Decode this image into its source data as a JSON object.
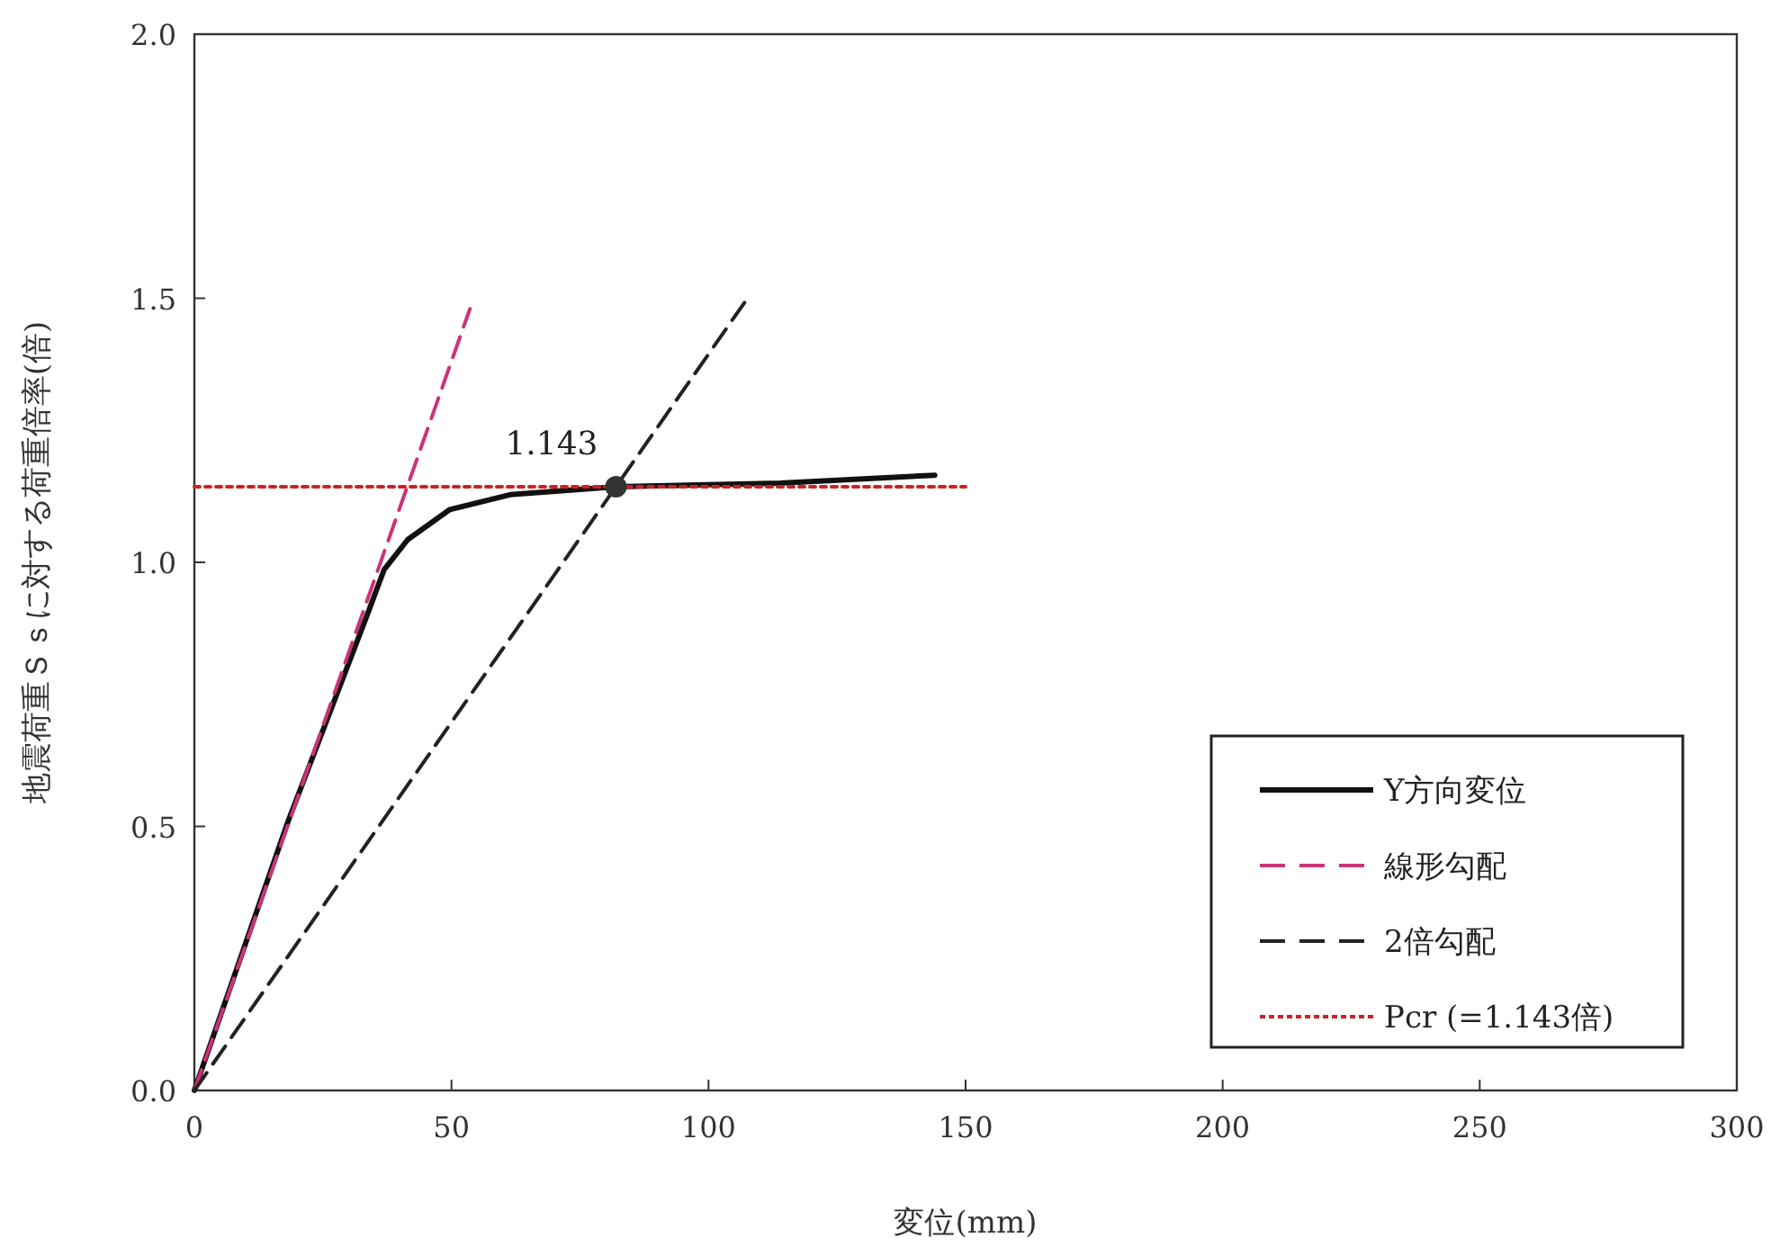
{
  "chart_data": {
    "type": "line",
    "xlabel": "変位(mm)",
    "ylabel": "地震荷重Ｓｓに対する荷重倍率(倍)",
    "xlim": [
      0,
      300
    ],
    "xticks": [
      0,
      50,
      100,
      150,
      200,
      250,
      300
    ],
    "ylim": [
      0,
      2
    ],
    "yticks": [
      {
        "value": 0,
        "label": "0.0"
      },
      {
        "value": 0.5,
        "label": "0.5"
      },
      {
        "value": 1,
        "label": "1.0"
      },
      {
        "value": 1.5,
        "label": "1.5"
      },
      {
        "value": 2,
        "label": "2.0"
      }
    ],
    "legend": "bottom right",
    "grid": false,
    "annotations": [
      {
        "text": "1.143",
        "x": 82,
        "y": 1.143
      }
    ],
    "series": [
      {
        "name": "Y方向変位",
        "color": "#111111",
        "line_style": "solid",
        "x": [
          0,
          18.2,
          33.4,
          36.9,
          41.5,
          49.7,
          61.4,
          82,
          113.9,
          144
        ],
        "values": [
          0,
          0.509,
          0.895,
          0.986,
          1.043,
          1.1,
          1.128,
          1.143,
          1.15,
          1.165
        ]
      },
      {
        "name": "線形勾配",
        "color": "#cc3377",
        "line_style": "dashed",
        "x": [
          0,
          53.6
        ],
        "values": [
          0,
          1.48
        ]
      },
      {
        "name": "2倍勾配",
        "color": "#222222",
        "line_style": "dashed",
        "x": [
          0,
          107.8
        ],
        "values": [
          0,
          1.503
        ]
      },
      {
        "name": "Pcr (=1.143倍)",
        "color": "#cc2222",
        "line_style": "dotted",
        "x": [
          0,
          150
        ],
        "values": [
          1.143,
          1.143
        ]
      },
      {
        "type": "scatter",
        "marker": "circle",
        "color": "#333333",
        "x": [
          82
        ],
        "values": [
          1.143
        ]
      }
    ]
  }
}
